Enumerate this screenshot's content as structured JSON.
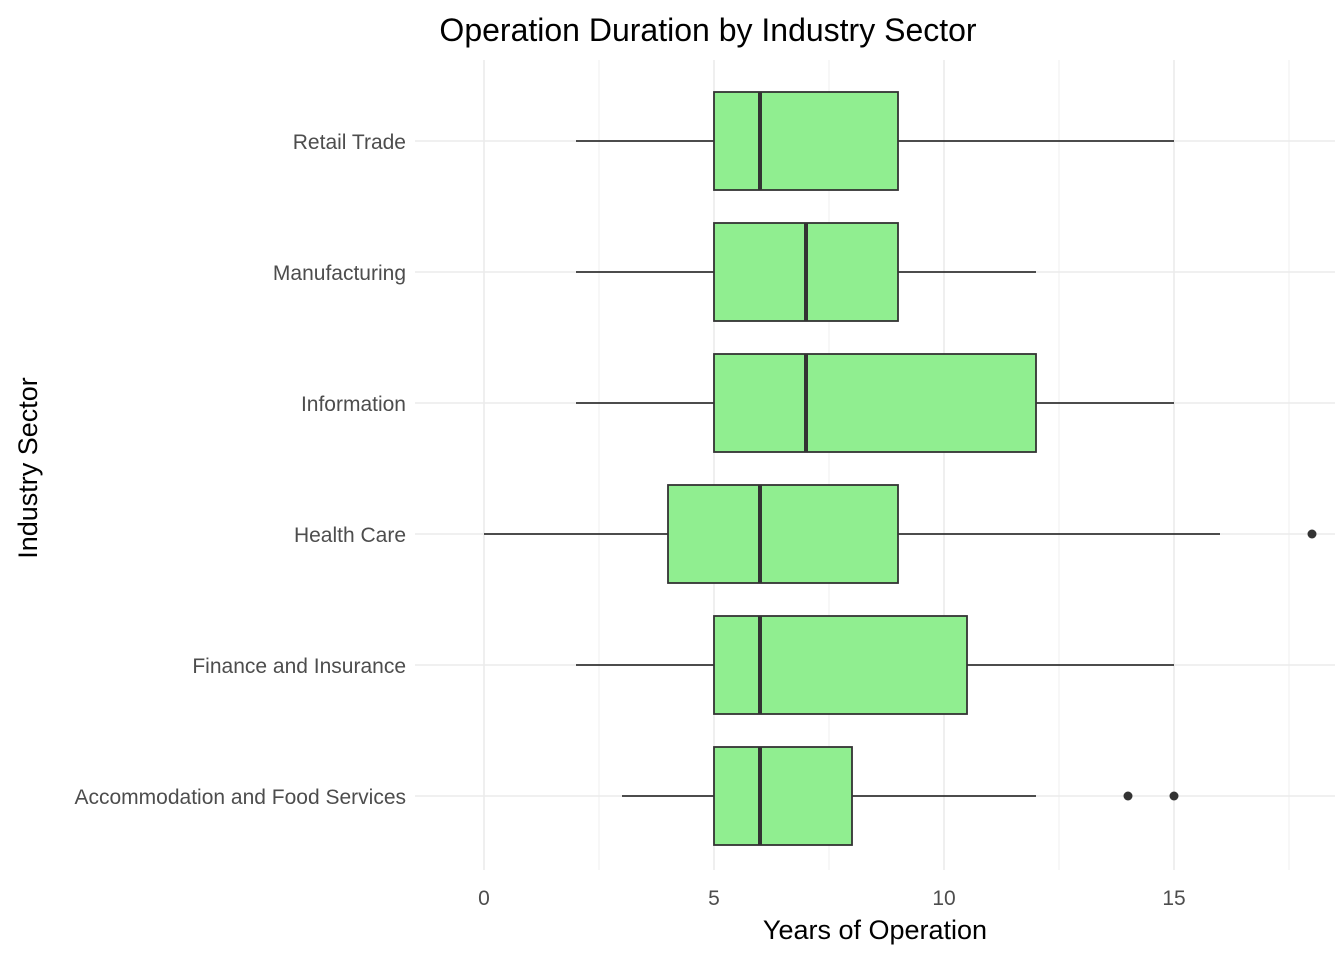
{
  "chart_data": {
    "type": "boxplot",
    "orientation": "horizontal",
    "title": "Operation Duration by Industry Sector",
    "xlabel": "Years of Operation",
    "ylabel": "Industry Sector",
    "xlim": [
      -1.5,
      18.5
    ],
    "xticks": [
      0,
      5,
      10,
      15
    ],
    "xtick_labels": [
      "0",
      "5",
      "10",
      "15"
    ],
    "grid": true,
    "legend": "none",
    "box_fill": "#90ee90",
    "box_stroke": "#333333",
    "categories": [
      "Accommodation and Food Services",
      "Finance and Insurance",
      "Health Care",
      "Information",
      "Manufacturing",
      "Retail Trade"
    ],
    "boxes": [
      {
        "category": "Accommodation and Food Services",
        "whisker_low": 3,
        "q1": 5,
        "median": 6,
        "q3": 8,
        "whisker_high": 12,
        "outliers": [
          14,
          15
        ]
      },
      {
        "category": "Finance and Insurance",
        "whisker_low": 2,
        "q1": 5,
        "median": 6,
        "q3": 10.5,
        "whisker_high": 15,
        "outliers": []
      },
      {
        "category": "Health Care",
        "whisker_low": 0,
        "q1": 4,
        "median": 6,
        "q3": 9,
        "whisker_high": 16,
        "outliers": [
          18
        ]
      },
      {
        "category": "Information",
        "whisker_low": 2,
        "q1": 5,
        "median": 7,
        "q3": 12,
        "whisker_high": 15,
        "outliers": []
      },
      {
        "category": "Manufacturing",
        "whisker_low": 2,
        "q1": 5,
        "median": 7,
        "q3": 9,
        "whisker_high": 12,
        "outliers": []
      },
      {
        "category": "Retail Trade",
        "whisker_low": 2,
        "q1": 5,
        "median": 6,
        "q3": 9,
        "whisker_high": 15,
        "outliers": []
      }
    ]
  }
}
